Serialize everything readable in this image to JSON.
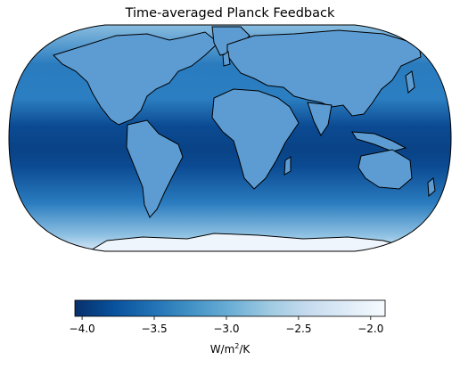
{
  "title": "Time-averaged Planck Feedback",
  "colorbar": {
    "label_prefix": "W/m",
    "label_sup": "2",
    "label_suffix": "/K",
    "min": -4.05,
    "max": -1.9,
    "ticks": [
      {
        "value": -4.0,
        "label": "−4.0"
      },
      {
        "value": -3.5,
        "label": "−3.5"
      },
      {
        "value": -3.0,
        "label": "−3.0"
      },
      {
        "value": -2.5,
        "label": "−2.5"
      },
      {
        "value": -2.0,
        "label": "−2.0"
      }
    ],
    "colormap": "Blues_r",
    "colors": [
      "#08306b",
      "#08519c",
      "#2171b5",
      "#4292c6",
      "#6baed6",
      "#9ecae1",
      "#c6dbef",
      "#deebf7",
      "#f7fbff"
    ]
  },
  "map": {
    "projection": "Robinson",
    "coastlines": true,
    "land_fill": "#5d9cd2",
    "ocean_tropics": "#0b4a92",
    "ocean_mid": "#2a7cbf",
    "ocean_high": "#8fc1e2",
    "polar": "#e6f0fa"
  }
}
